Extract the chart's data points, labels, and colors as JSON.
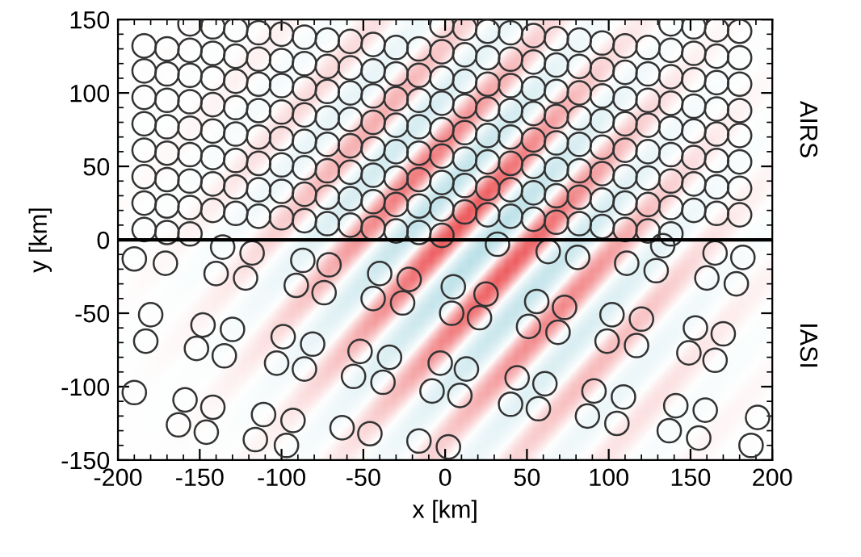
{
  "chart_data": {
    "type": "scatter",
    "xlabel": "x [km]",
    "ylabel": "y [km]",
    "xlim": [
      -200,
      200
    ],
    "xticks": [
      -200,
      -150,
      -100,
      -50,
      0,
      50,
      100,
      150,
      200
    ],
    "ylim": [
      -150,
      150
    ],
    "yticks": [
      -150,
      -100,
      -50,
      0,
      50,
      100,
      150
    ],
    "grid": false,
    "marker": "circle",
    "ref_lines": [
      {
        "axis": "y",
        "value": 0,
        "color": "#000000",
        "line_style": "solid"
      }
    ],
    "series": [
      {
        "name": "AIRS",
        "color": "#333333",
        "x": [
          138,
          152,
          166,
          180,
          -2,
          12,
          26,
          40,
          54,
          68,
          82,
          96,
          110,
          124,
          138,
          152,
          166,
          180,
          -156,
          -142,
          -128,
          -114,
          -100,
          -86,
          -72,
          -58,
          -44,
          -30,
          -16,
          -2,
          12,
          26,
          40,
          54,
          68,
          82,
          96,
          110,
          124,
          138,
          152,
          166,
          180,
          -184,
          -170,
          -156,
          -142,
          -128,
          -114,
          -100,
          -86,
          -72,
          -58,
          -44,
          -30,
          -16,
          -2,
          12,
          26,
          40,
          54,
          68,
          82,
          96,
          110,
          124,
          138,
          152,
          166,
          180,
          -184,
          -170,
          -156,
          -142,
          -128,
          -114,
          -100,
          -86,
          -72,
          -58,
          -44,
          -30,
          -16,
          -2,
          12,
          26,
          40,
          54,
          68,
          82,
          96,
          110,
          124,
          138,
          152,
          166,
          180,
          -184,
          -170,
          -156,
          -142,
          -128,
          -114,
          -100,
          -86,
          -72,
          -58,
          -44,
          -30,
          -16,
          -2,
          12,
          26,
          40,
          54,
          68,
          82,
          96,
          110,
          124,
          138,
          152,
          166,
          180,
          -184,
          -170,
          -156,
          -142,
          -128,
          -114,
          -100,
          -86,
          -72,
          -58,
          -44,
          -30,
          -16,
          -2,
          12,
          26,
          40,
          54,
          68,
          82,
          96,
          110,
          124,
          138,
          152,
          166,
          180,
          -184,
          -170,
          -156,
          -142,
          -128,
          -114,
          -100,
          -86,
          -72,
          -58,
          -44,
          -30,
          -16,
          -2,
          12,
          26,
          40,
          54,
          68,
          82,
          96,
          110,
          124,
          138,
          152,
          166,
          180,
          -184,
          -170,
          -156,
          -142,
          -128,
          -114,
          -100,
          -86,
          -72,
          -58,
          -44,
          -30,
          -16,
          -2,
          12,
          26,
          40,
          54,
          68,
          82,
          96,
          110,
          124,
          138,
          -184,
          -170,
          -156,
          -142,
          -128,
          -114,
          -100,
          -86,
          -72,
          -58,
          -44,
          -30,
          -16,
          -2,
          -184,
          -170,
          -156
        ],
        "values": [
          147,
          145,
          143,
          142,
          146,
          144,
          142,
          141,
          139,
          137,
          136,
          134,
          132,
          131,
          129,
          127,
          125,
          124,
          147,
          145,
          143,
          141,
          140,
          138,
          136,
          135,
          133,
          131,
          130,
          128,
          126,
          124,
          123,
          121,
          119,
          118,
          116,
          114,
          113,
          111,
          109,
          107,
          106,
          132,
          130,
          129,
          127,
          125,
          123,
          122,
          120,
          118,
          117,
          115,
          113,
          112,
          110,
          108,
          106,
          105,
          103,
          101,
          100,
          98,
          96,
          95,
          93,
          91,
          89,
          88,
          115,
          113,
          112,
          110,
          108,
          106,
          105,
          103,
          101,
          100,
          98,
          96,
          95,
          93,
          91,
          89,
          88,
          86,
          84,
          83,
          81,
          79,
          78,
          76,
          74,
          72,
          71,
          97,
          95,
          94,
          92,
          90,
          88,
          87,
          85,
          83,
          82,
          80,
          78,
          77,
          75,
          73,
          71,
          70,
          68,
          66,
          65,
          63,
          61,
          60,
          58,
          56,
          54,
          53,
          79,
          77,
          76,
          74,
          72,
          70,
          69,
          67,
          65,
          64,
          62,
          60,
          59,
          57,
          55,
          53,
          52,
          50,
          48,
          47,
          45,
          43,
          42,
          40,
          38,
          36,
          35,
          61,
          59,
          58,
          56,
          54,
          52,
          51,
          49,
          47,
          46,
          44,
          42,
          41,
          39,
          37,
          35,
          34,
          32,
          30,
          29,
          27,
          25,
          24,
          22,
          20,
          18,
          17,
          43,
          41,
          40,
          38,
          36,
          34,
          33,
          31,
          29,
          28,
          26,
          24,
          23,
          21,
          19,
          17,
          16,
          14,
          12,
          11,
          9,
          7,
          6,
          4,
          25,
          23,
          22,
          20,
          18,
          16,
          15,
          13,
          11,
          10,
          8,
          6,
          5,
          3,
          7,
          5,
          4
        ]
      },
      {
        "name": "IASI",
        "color": "#333333",
        "x": [
          -190,
          -171,
          -136,
          -118,
          -140,
          -122,
          -87,
          -71,
          -91,
          -74,
          -40,
          -22,
          -44,
          -26,
          5,
          -180,
          -183,
          -148,
          -130,
          -152,
          -135,
          -99,
          -81,
          -103,
          -86,
          -52,
          -34,
          -56,
          -38,
          -3,
          -8,
          -190,
          -159,
          -142,
          -163,
          -146,
          -111,
          -93,
          -116,
          -97,
          -63,
          -46,
          -16,
          2,
          32,
          63,
          81,
          111,
          129,
          133,
          165,
          182,
          160,
          178,
          25,
          4,
          21,
          56,
          73,
          51,
          69,
          102,
          120,
          99,
          117,
          153,
          170,
          149,
          165,
          13,
          9,
          44,
          61,
          40,
          57,
          91,
          109,
          87,
          105,
          141,
          159,
          137,
          155,
          191,
          187
        ],
        "values": [
          -13,
          -16,
          -5,
          -9,
          -23,
          -26,
          -14,
          -17,
          -31,
          -36,
          -23,
          -27,
          -40,
          -43,
          -32,
          -51,
          -69,
          -58,
          -61,
          -74,
          -79,
          -66,
          -71,
          -84,
          -88,
          -76,
          -80,
          -93,
          -97,
          -84,
          -103,
          -104,
          -109,
          -114,
          -126,
          -131,
          -119,
          -123,
          -136,
          -140,
          -128,
          -132,
          -137,
          -141,
          -3,
          -8,
          -12,
          -16,
          -21,
          -4,
          -9,
          -12,
          -26,
          -30,
          -37,
          -50,
          -53,
          -42,
          -46,
          -59,
          -63,
          -51,
          -54,
          -69,
          -72,
          -60,
          -64,
          -77,
          -82,
          -88,
          -106,
          -94,
          -98,
          -112,
          -115,
          -103,
          -107,
          -120,
          -125,
          -113,
          -116,
          -130,
          -135,
          -121,
          -140
        ]
      }
    ]
  }
}
